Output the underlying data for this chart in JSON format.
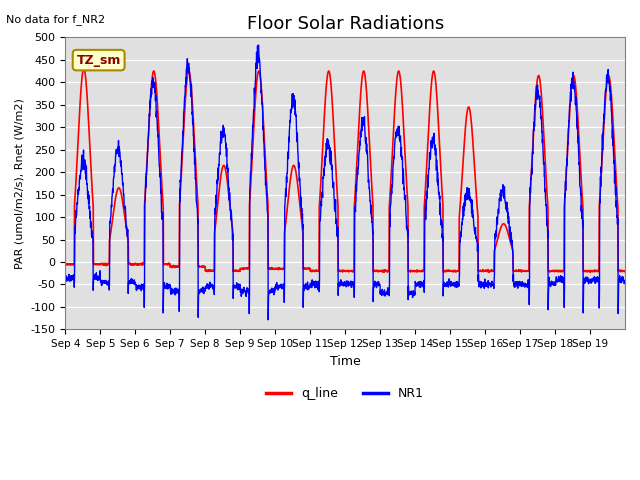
{
  "title": "Floor Solar Radiations",
  "xlabel": "Time",
  "ylabel": "PAR (umol/m2/s), Rnet (W/m2)",
  "ylim": [
    -150,
    500
  ],
  "yticks": [
    -150,
    -100,
    -50,
    0,
    50,
    100,
    150,
    200,
    250,
    300,
    350,
    400,
    450,
    500
  ],
  "xtick_positions": [
    0,
    1,
    2,
    3,
    4,
    5,
    6,
    7,
    8,
    9,
    10,
    11,
    12,
    13,
    14,
    15
  ],
  "xtick_labels": [
    "Sep 4",
    "Sep 5",
    "Sep 6",
    "Sep 7",
    "Sep 8",
    "Sep 9",
    "Sep 10",
    "Sep 11",
    "Sep 12",
    "Sep 13",
    "Sep 14",
    "Sep 15",
    "Sep 16",
    "Sep 17",
    "Sep 18",
    "Sep 19"
  ],
  "no_data_text": "No data for f_NR2",
  "legend_box_label": "TZ_sm",
  "legend_entries": [
    "q_line",
    "NR1"
  ],
  "line_colors": [
    "red",
    "blue"
  ],
  "background_color": "#e0e0e0",
  "title_fontsize": 13,
  "q_peaks": [
    430,
    165,
    425,
    425,
    215,
    425,
    215,
    425,
    425,
    425,
    425,
    345,
    85,
    415,
    415,
    415
  ],
  "NR1_peaks": [
    225,
    250,
    405,
    440,
    290,
    460,
    360,
    265,
    315,
    300,
    270,
    155,
    155,
    380,
    405,
    410
  ],
  "q_night": [
    -5,
    -5,
    -5,
    -10,
    -20,
    -15,
    -15,
    -20,
    -20,
    -20,
    -20,
    -20,
    -20,
    -20,
    -20,
    -20
  ],
  "NR1_night": [
    -35,
    -45,
    -55,
    -65,
    -55,
    -65,
    -55,
    -50,
    -50,
    -70,
    -50,
    -50,
    -50,
    -50,
    -40,
    -40
  ],
  "days": 16,
  "points_per_day": 144
}
